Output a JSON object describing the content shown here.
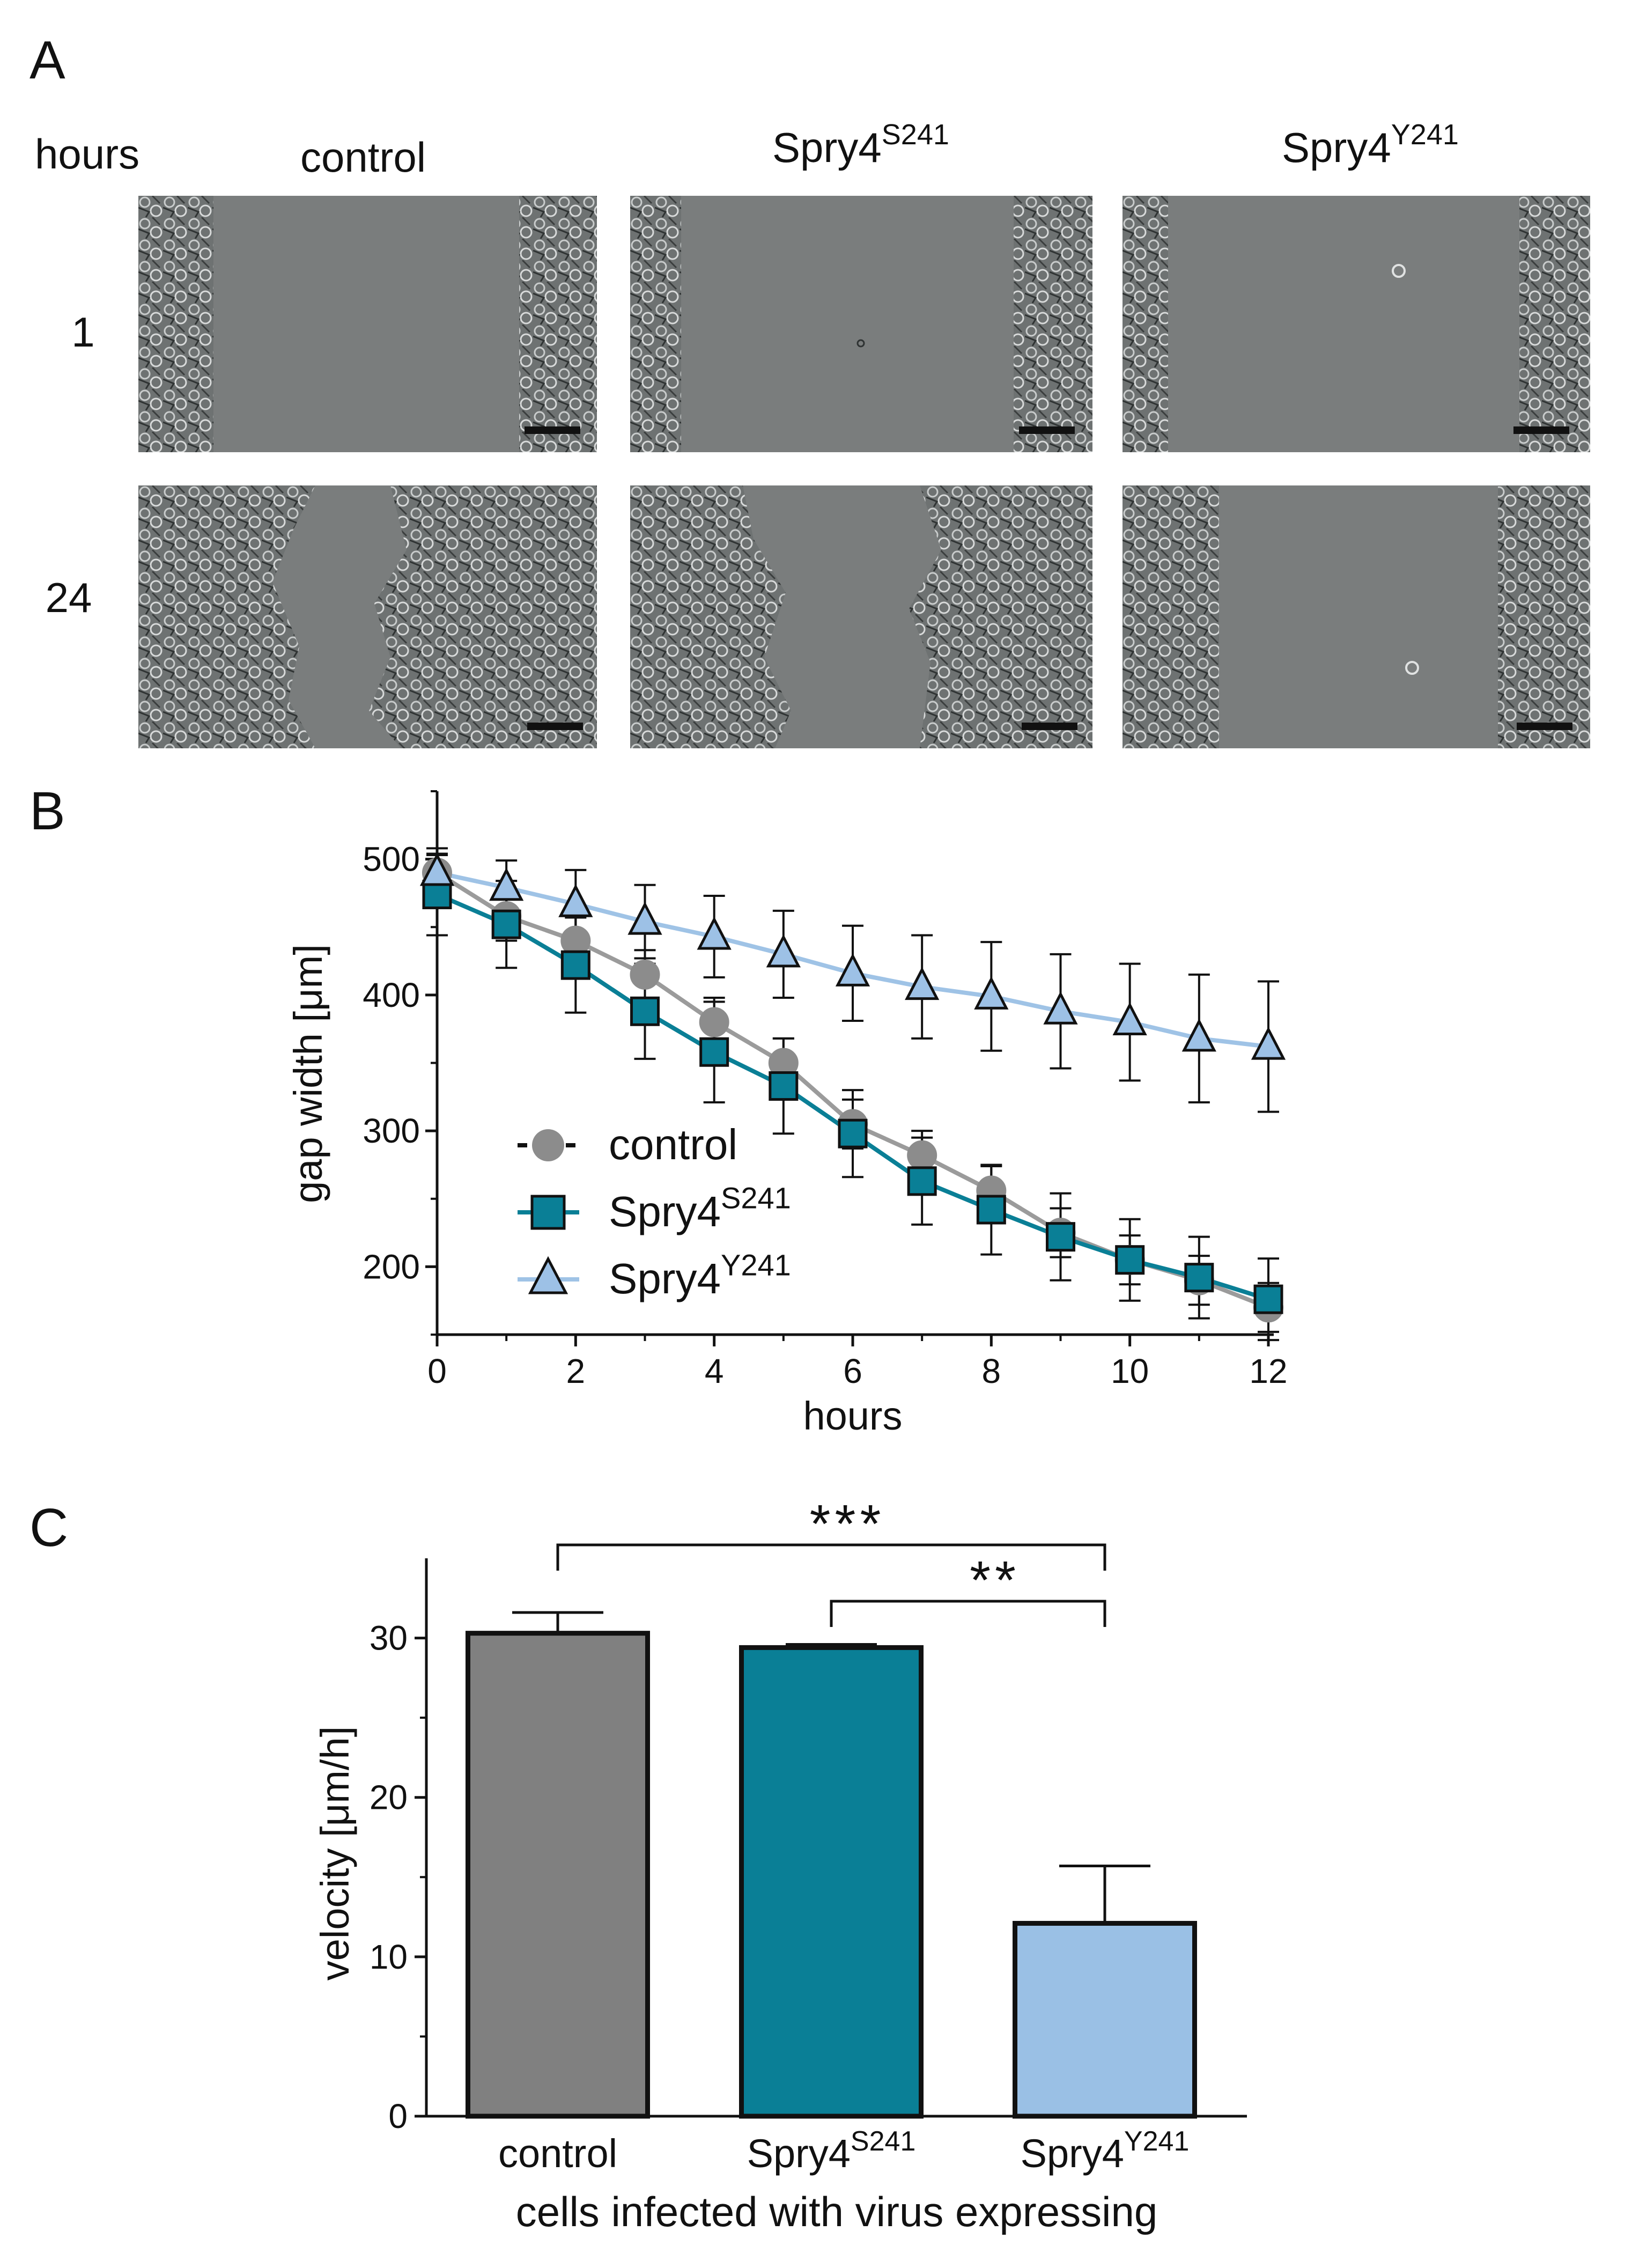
{
  "panelA": {
    "letter": "A",
    "row_header": "hours",
    "columns": [
      {
        "name": "control",
        "sup": ""
      },
      {
        "name": "Spry4",
        "sup": "S241"
      },
      {
        "name": "Spry4",
        "sup": "Y241"
      }
    ],
    "rows": [
      "1",
      "24"
    ],
    "image_description_note": "Phase-contrast micrographs of wound-healing scratch assay with scale bars"
  },
  "colors": {
    "control": "#9b9b9b",
    "control_marker": "#8c8c8c",
    "s241": "#0a7f96",
    "y241_line": "#9fc3e6",
    "y241_marker": "#9dc1e6",
    "bar_control": "#808080",
    "bar_s241": "#0a7f96",
    "bar_y241": "#9ac0e5",
    "axis": "#111111"
  },
  "chart_data": [
    {
      "panel": "B",
      "type": "line",
      "xlabel": "hours",
      "ylabel": "gap width [μm]",
      "xlim": [
        0,
        12
      ],
      "ylim": [
        150,
        550
      ],
      "xticks": [
        0,
        2,
        4,
        6,
        8,
        10,
        12
      ],
      "yticks": [
        200,
        300,
        400,
        500
      ],
      "x": [
        0,
        1,
        2,
        3,
        4,
        5,
        6,
        7,
        8,
        9,
        10,
        11,
        12
      ],
      "series": [
        {
          "key": "control",
          "name": "control",
          "sup": "",
          "values": [
            490,
            458,
            440,
            415,
            380,
            350,
            305,
            282,
            256,
            225,
            205,
            190,
            170
          ],
          "errors": [
            18,
            18,
            18,
            18,
            18,
            18,
            18,
            18,
            18,
            18,
            18,
            18,
            18
          ]
        },
        {
          "key": "s241",
          "name": "Spry4",
          "sup": "S241",
          "values": [
            474,
            452,
            422,
            388,
            358,
            333,
            298,
            263,
            242,
            222,
            205,
            192,
            176
          ],
          "errors": [
            30,
            32,
            35,
            35,
            37,
            35,
            32,
            32,
            33,
            32,
            30,
            30,
            30
          ]
        },
        {
          "key": "y241",
          "name": "Spry4",
          "sup": "Y241",
          "values": [
            490,
            479,
            467,
            454,
            443,
            430,
            416,
            406,
            399,
            388,
            380,
            368,
            362
          ],
          "errors": [
            13,
            20,
            25,
            27,
            30,
            32,
            35,
            38,
            40,
            42,
            43,
            47,
            48
          ]
        }
      ],
      "legend_position": "lower-left"
    },
    {
      "panel": "C",
      "type": "bar",
      "xlabel": "cells infected with virus expressing",
      "ylabel": "velocity [μm/h]",
      "ylim": [
        0,
        35
      ],
      "yticks": [
        0,
        10,
        20,
        30
      ],
      "categories": [
        {
          "name": "control",
          "sup": ""
        },
        {
          "name": "Spry4",
          "sup": "S241"
        },
        {
          "name": "Spry4",
          "sup": "Y241"
        }
      ],
      "values": [
        30.3,
        29.4,
        12.1
      ],
      "errors": [
        1.3,
        0.2,
        3.6
      ],
      "significance": [
        {
          "from": 0,
          "to": 2,
          "label": "***"
        },
        {
          "from": 1,
          "to": 2,
          "label": "**"
        }
      ]
    }
  ]
}
